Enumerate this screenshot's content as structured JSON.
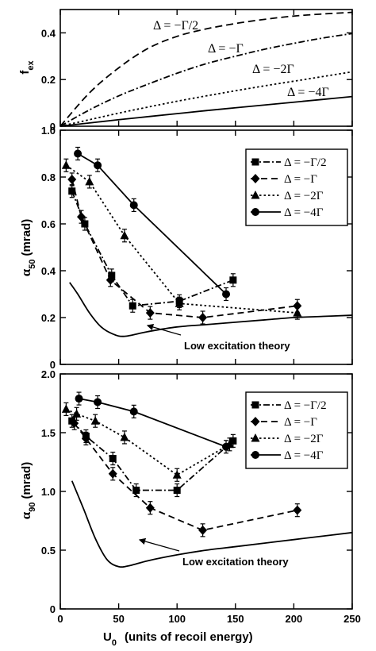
{
  "xaxis": {
    "label": "U",
    "label_sub": "0",
    "label_tail": "(units of recoil energy)",
    "ticks": [
      "0",
      "50",
      "100",
      "150",
      "200",
      "250"
    ]
  },
  "chart_data": [
    {
      "type": "line",
      "panel": "fex",
      "ylabel": "f",
      "ylabel_sub": "ex",
      "xlim": [
        0,
        250
      ],
      "ylim": [
        0,
        0.5
      ],
      "yticks": [
        0,
        0.2,
        0.4
      ],
      "ytick_labels": [
        "0",
        "0.2",
        "0.4"
      ],
      "series": [
        {
          "name": "Δ = −Γ/2",
          "style": "dashed-long",
          "x": [
            0,
            25,
            50,
            75,
            100,
            125,
            150,
            175,
            200,
            225,
            250
          ],
          "y": [
            0,
            0.143,
            0.25,
            0.333,
            0.385,
            0.417,
            0.44,
            0.458,
            0.472,
            0.481,
            0.488
          ]
        },
        {
          "name": "Δ = −Γ",
          "style": "dash-dot",
          "x": [
            0,
            25,
            50,
            75,
            100,
            125,
            150,
            175,
            200,
            225,
            250
          ],
          "y": [
            0,
            0.07,
            0.13,
            0.18,
            0.227,
            0.268,
            0.3,
            0.33,
            0.355,
            0.378,
            0.397
          ]
        },
        {
          "name": "Δ = −2Γ",
          "style": "dotted",
          "x": [
            0,
            25,
            50,
            75,
            100,
            125,
            150,
            175,
            200,
            225,
            250
          ],
          "y": [
            0,
            0.028,
            0.056,
            0.082,
            0.107,
            0.13,
            0.152,
            0.173,
            0.193,
            0.213,
            0.233
          ]
        },
        {
          "name": "Δ = −4Γ",
          "style": "solid",
          "x": [
            0,
            25,
            50,
            75,
            100,
            125,
            150,
            175,
            200,
            225,
            250
          ],
          "y": [
            0,
            0.014,
            0.028,
            0.041,
            0.054,
            0.067,
            0.079,
            0.091,
            0.103,
            0.115,
            0.127
          ]
        }
      ],
      "annotations": [
        "Δ = −Γ/2",
        "Δ = −Γ",
        "Δ = −2Γ",
        "Δ = −4Γ"
      ]
    },
    {
      "type": "line",
      "panel": "alpha50",
      "ylabel": "α",
      "ylabel_sub": "50",
      "ylabel_unit": "(mrad)",
      "xlim": [
        0,
        250
      ],
      "ylim": [
        0,
        1.0
      ],
      "yticks": [
        0,
        0.2,
        0.4,
        0.6,
        0.8,
        1.0
      ],
      "ytick_labels": [
        "0",
        "0.2",
        "0.4",
        "0.6",
        "0.8",
        "1.0"
      ],
      "legend_position": "top-right",
      "series": [
        {
          "name": "Δ = −Γ/2",
          "marker": "square",
          "style": "dash-dot",
          "x": [
            10,
            21,
            44,
            62,
            102,
            148
          ],
          "y": [
            0.74,
            0.6,
            0.38,
            0.25,
            0.27,
            0.36
          ]
        },
        {
          "name": "Δ = −Γ",
          "marker": "diamond",
          "style": "dashed",
          "x": [
            10,
            18,
            43,
            77,
            122,
            203
          ],
          "y": [
            0.79,
            0.63,
            0.36,
            0.22,
            0.2,
            0.25
          ]
        },
        {
          "name": "Δ = −2Γ",
          "marker": "triangle",
          "style": "dotted",
          "x": [
            5,
            25,
            55,
            102,
            203
          ],
          "y": [
            0.85,
            0.78,
            0.55,
            0.26,
            0.22
          ]
        },
        {
          "name": "Δ = −4Γ",
          "marker": "circle",
          "style": "solid",
          "x": [
            15,
            32,
            63,
            142
          ],
          "y": [
            0.9,
            0.85,
            0.68,
            0.3
          ]
        },
        {
          "name": "Low excitation theory",
          "style": "solid",
          "x": [
            8,
            15,
            25,
            35,
            45,
            55,
            75,
            100,
            125,
            150,
            175,
            200,
            225,
            250
          ],
          "y": [
            0.35,
            0.3,
            0.22,
            0.16,
            0.13,
            0.12,
            0.14,
            0.16,
            0.17,
            0.18,
            0.19,
            0.2,
            0.205,
            0.21
          ]
        }
      ],
      "annotation": "Low excitation theory"
    },
    {
      "type": "line",
      "panel": "alpha90",
      "ylabel": "α",
      "ylabel_sub": "90",
      "ylabel_unit": "(mrad)",
      "xlim": [
        0,
        250
      ],
      "ylim": [
        0,
        2.0
      ],
      "yticks": [
        0,
        0.5,
        1.0,
        1.5,
        2.0
      ],
      "ytick_labels": [
        "0",
        "0.5",
        "1.0",
        "1.5",
        "2.0"
      ],
      "legend_position": "top-right",
      "series": [
        {
          "name": "Δ = −Γ/2",
          "marker": "square",
          "style": "dash-dot",
          "x": [
            10,
            22,
            45,
            65,
            100,
            148
          ],
          "y": [
            1.6,
            1.47,
            1.28,
            1.01,
            1.01,
            1.43
          ]
        },
        {
          "name": "Δ = −Γ",
          "marker": "diamond",
          "style": "dashed",
          "x": [
            12,
            22,
            45,
            77,
            122,
            203
          ],
          "y": [
            1.58,
            1.45,
            1.15,
            0.86,
            0.67,
            0.84
          ]
        },
        {
          "name": "Δ = −2Γ",
          "marker": "triangle",
          "style": "dotted",
          "x": [
            5,
            14,
            30,
            55,
            100,
            145
          ],
          "y": [
            1.7,
            1.66,
            1.6,
            1.46,
            1.14,
            1.4
          ]
        },
        {
          "name": "Δ = −4Γ",
          "marker": "circle",
          "style": "solid",
          "x": [
            16,
            32,
            63,
            142
          ],
          "y": [
            1.79,
            1.76,
            1.68,
            1.38
          ]
        },
        {
          "name": "Low excitation theory",
          "style": "solid",
          "x": [
            10,
            20,
            30,
            40,
            50,
            60,
            75,
            100,
            125,
            150,
            175,
            200,
            225,
            250
          ],
          "y": [
            1.09,
            0.85,
            0.6,
            0.42,
            0.36,
            0.37,
            0.41,
            0.46,
            0.5,
            0.53,
            0.56,
            0.59,
            0.62,
            0.65
          ]
        }
      ],
      "annotation": "Low excitation theory"
    }
  ]
}
